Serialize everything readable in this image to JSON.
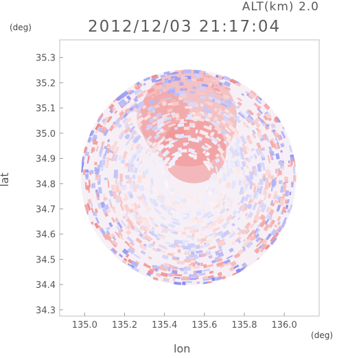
{
  "header": {
    "altitude": "ALT(km) 2.0",
    "timestamp": "2012/12/03 21:17:04"
  },
  "chart_data": {
    "type": "heatmap",
    "title": "2012/12/03 21:17:04",
    "xlabel": "lon",
    "ylabel": "lat",
    "x_unit": "(deg)",
    "y_unit": "(deg)",
    "xlim": [
      134.875,
      136.175
    ],
    "ylim": [
      34.275,
      35.37
    ],
    "x_ticks": [
      {
        "value": 135.0,
        "label": "135.0"
      },
      {
        "value": 135.2,
        "label": "135.2"
      },
      {
        "value": 135.4,
        "label": "135.4"
      },
      {
        "value": 135.6,
        "label": "135.6"
      },
      {
        "value": 135.8,
        "label": "135.8"
      },
      {
        "value": 136.0,
        "label": "136.0"
      }
    ],
    "y_ticks": [
      {
        "value": 34.3,
        "label": "34.3"
      },
      {
        "value": 34.4,
        "label": "34.4"
      },
      {
        "value": 34.5,
        "label": "34.5"
      },
      {
        "value": 34.6,
        "label": "34.6"
      },
      {
        "value": 34.7,
        "label": "34.7"
      },
      {
        "value": 34.8,
        "label": "34.8"
      },
      {
        "value": 34.9,
        "label": "34.9"
      },
      {
        "value": 35.0,
        "label": "35.0"
      },
      {
        "value": 35.1,
        "label": "35.1"
      },
      {
        "value": 35.2,
        "label": "35.2"
      },
      {
        "value": 35.3,
        "label": "35.3"
      }
    ],
    "radar_center": {
      "lon": 135.52,
      "lat": 34.825
    },
    "radar_range_deg": 0.54,
    "colors": {
      "positive": "#f08a8a",
      "negative": "#8a8af0",
      "neutral": "#f6f0f6",
      "frame": "#bdbdbd"
    },
    "grid": false,
    "legend": "none"
  }
}
